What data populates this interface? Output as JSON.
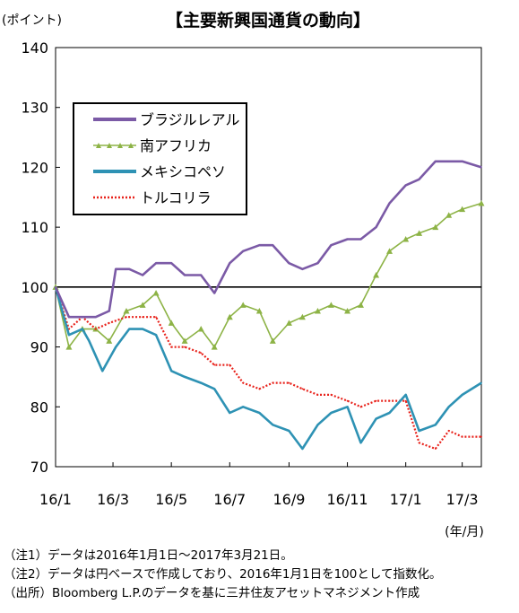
{
  "chart_data": {
    "type": "line",
    "title": "【主要新興国通貨の動向】",
    "unit_label": "(ポイント)",
    "xunit_label": "(年/月)",
    "x_tick_labels": [
      "16/1",
      "16/3",
      "16/5",
      "16/7",
      "16/9",
      "16/11",
      "17/1",
      "17/3"
    ],
    "xlim": [
      "2016-01-01",
      "2017-03-21"
    ],
    "ylim": [
      70,
      140
    ],
    "y_ticks": [
      70,
      80,
      90,
      100,
      110,
      120,
      130,
      140
    ],
    "grid": false,
    "legend_position": "upper-left",
    "baseline": 100,
    "series": [
      {
        "name": "ブラジルレアル",
        "color": "#7b5aa6",
        "style": "thick",
        "points": [
          [
            "2016-01-01",
            100
          ],
          [
            "2016-01-15",
            95
          ],
          [
            "2016-01-29",
            95
          ],
          [
            "2016-02-12",
            95
          ],
          [
            "2016-02-26",
            96
          ],
          [
            "2016-03-04",
            103
          ],
          [
            "2016-03-18",
            103
          ],
          [
            "2016-04-01",
            102
          ],
          [
            "2016-04-15",
            104
          ],
          [
            "2016-05-01",
            104
          ],
          [
            "2016-05-15",
            102
          ],
          [
            "2016-06-01",
            102
          ],
          [
            "2016-06-15",
            99
          ],
          [
            "2016-07-01",
            104
          ],
          [
            "2016-07-15",
            106
          ],
          [
            "2016-08-01",
            107
          ],
          [
            "2016-08-15",
            107
          ],
          [
            "2016-09-01",
            104
          ],
          [
            "2016-09-15",
            103
          ],
          [
            "2016-10-01",
            104
          ],
          [
            "2016-10-15",
            107
          ],
          [
            "2016-11-01",
            108
          ],
          [
            "2016-11-15",
            108
          ],
          [
            "2016-12-01",
            110
          ],
          [
            "2016-12-15",
            114
          ],
          [
            "2017-01-01",
            117
          ],
          [
            "2017-01-15",
            118
          ],
          [
            "2017-02-01",
            121
          ],
          [
            "2017-02-15",
            121
          ],
          [
            "2017-03-01",
            121
          ],
          [
            "2017-03-21",
            120
          ]
        ]
      },
      {
        "name": "南アフリカ",
        "color": "#8db346",
        "style": "markers",
        "points": [
          [
            "2016-01-01",
            100
          ],
          [
            "2016-01-15",
            90
          ],
          [
            "2016-01-29",
            93
          ],
          [
            "2016-02-12",
            93
          ],
          [
            "2016-02-26",
            91
          ],
          [
            "2016-03-15",
            96
          ],
          [
            "2016-04-01",
            97
          ],
          [
            "2016-04-15",
            99
          ],
          [
            "2016-05-01",
            94
          ],
          [
            "2016-05-15",
            91
          ],
          [
            "2016-06-01",
            93
          ],
          [
            "2016-06-15",
            90
          ],
          [
            "2016-07-01",
            95
          ],
          [
            "2016-07-15",
            97
          ],
          [
            "2016-08-01",
            96
          ],
          [
            "2016-08-15",
            91
          ],
          [
            "2016-09-01",
            94
          ],
          [
            "2016-09-15",
            95
          ],
          [
            "2016-10-01",
            96
          ],
          [
            "2016-10-15",
            97
          ],
          [
            "2016-11-01",
            96
          ],
          [
            "2016-11-15",
            97
          ],
          [
            "2016-12-01",
            102
          ],
          [
            "2016-12-15",
            106
          ],
          [
            "2017-01-01",
            108
          ],
          [
            "2017-01-15",
            109
          ],
          [
            "2017-02-01",
            110
          ],
          [
            "2017-02-15",
            112
          ],
          [
            "2017-03-01",
            113
          ],
          [
            "2017-03-21",
            114
          ]
        ]
      },
      {
        "name": "メキシコペソ",
        "color": "#2e92b4",
        "style": "thick",
        "points": [
          [
            "2016-01-01",
            100
          ],
          [
            "2016-01-15",
            92
          ],
          [
            "2016-01-29",
            93
          ],
          [
            "2016-02-05",
            91
          ],
          [
            "2016-02-19",
            86
          ],
          [
            "2016-03-04",
            90
          ],
          [
            "2016-03-18",
            93
          ],
          [
            "2016-04-01",
            93
          ],
          [
            "2016-04-15",
            92
          ],
          [
            "2016-05-01",
            86
          ],
          [
            "2016-05-15",
            85
          ],
          [
            "2016-06-01",
            84
          ],
          [
            "2016-06-15",
            83
          ],
          [
            "2016-07-01",
            79
          ],
          [
            "2016-07-15",
            80
          ],
          [
            "2016-08-01",
            79
          ],
          [
            "2016-08-15",
            77
          ],
          [
            "2016-09-01",
            76
          ],
          [
            "2016-09-15",
            73
          ],
          [
            "2016-10-01",
            77
          ],
          [
            "2016-10-15",
            79
          ],
          [
            "2016-11-01",
            80
          ],
          [
            "2016-11-15",
            74
          ],
          [
            "2016-12-01",
            78
          ],
          [
            "2016-12-15",
            79
          ],
          [
            "2017-01-01",
            82
          ],
          [
            "2017-01-15",
            76
          ],
          [
            "2017-02-01",
            77
          ],
          [
            "2017-02-15",
            80
          ],
          [
            "2017-03-01",
            82
          ],
          [
            "2017-03-21",
            84
          ]
        ]
      },
      {
        "name": "トルコリラ",
        "color": "#e8221b",
        "style": "dotted",
        "points": [
          [
            "2016-01-01",
            100
          ],
          [
            "2016-01-15",
            93
          ],
          [
            "2016-01-29",
            95
          ],
          [
            "2016-02-12",
            93
          ],
          [
            "2016-02-26",
            94
          ],
          [
            "2016-03-15",
            95
          ],
          [
            "2016-04-01",
            95
          ],
          [
            "2016-04-15",
            95
          ],
          [
            "2016-05-01",
            90
          ],
          [
            "2016-05-15",
            90
          ],
          [
            "2016-06-01",
            89
          ],
          [
            "2016-06-15",
            87
          ],
          [
            "2016-07-01",
            87
          ],
          [
            "2016-07-15",
            84
          ],
          [
            "2016-08-01",
            83
          ],
          [
            "2016-08-15",
            84
          ],
          [
            "2016-09-01",
            84
          ],
          [
            "2016-09-15",
            83
          ],
          [
            "2016-10-01",
            82
          ],
          [
            "2016-10-15",
            82
          ],
          [
            "2016-11-01",
            81
          ],
          [
            "2016-11-15",
            80
          ],
          [
            "2016-12-01",
            81
          ],
          [
            "2016-12-15",
            81
          ],
          [
            "2017-01-01",
            81
          ],
          [
            "2017-01-15",
            74
          ],
          [
            "2017-02-01",
            73
          ],
          [
            "2017-02-15",
            76
          ],
          [
            "2017-03-01",
            75
          ],
          [
            "2017-03-21",
            75
          ]
        ]
      }
    ]
  },
  "notes": [
    "（注1）データは2016年1月1日～2017年3月21日。",
    "（注2）データは円ベースで作成しており、2016年1月1日を100として指数化。",
    "（出所）Bloomberg L.P.のデータを基に三井住友アセットマネジメント作成"
  ]
}
